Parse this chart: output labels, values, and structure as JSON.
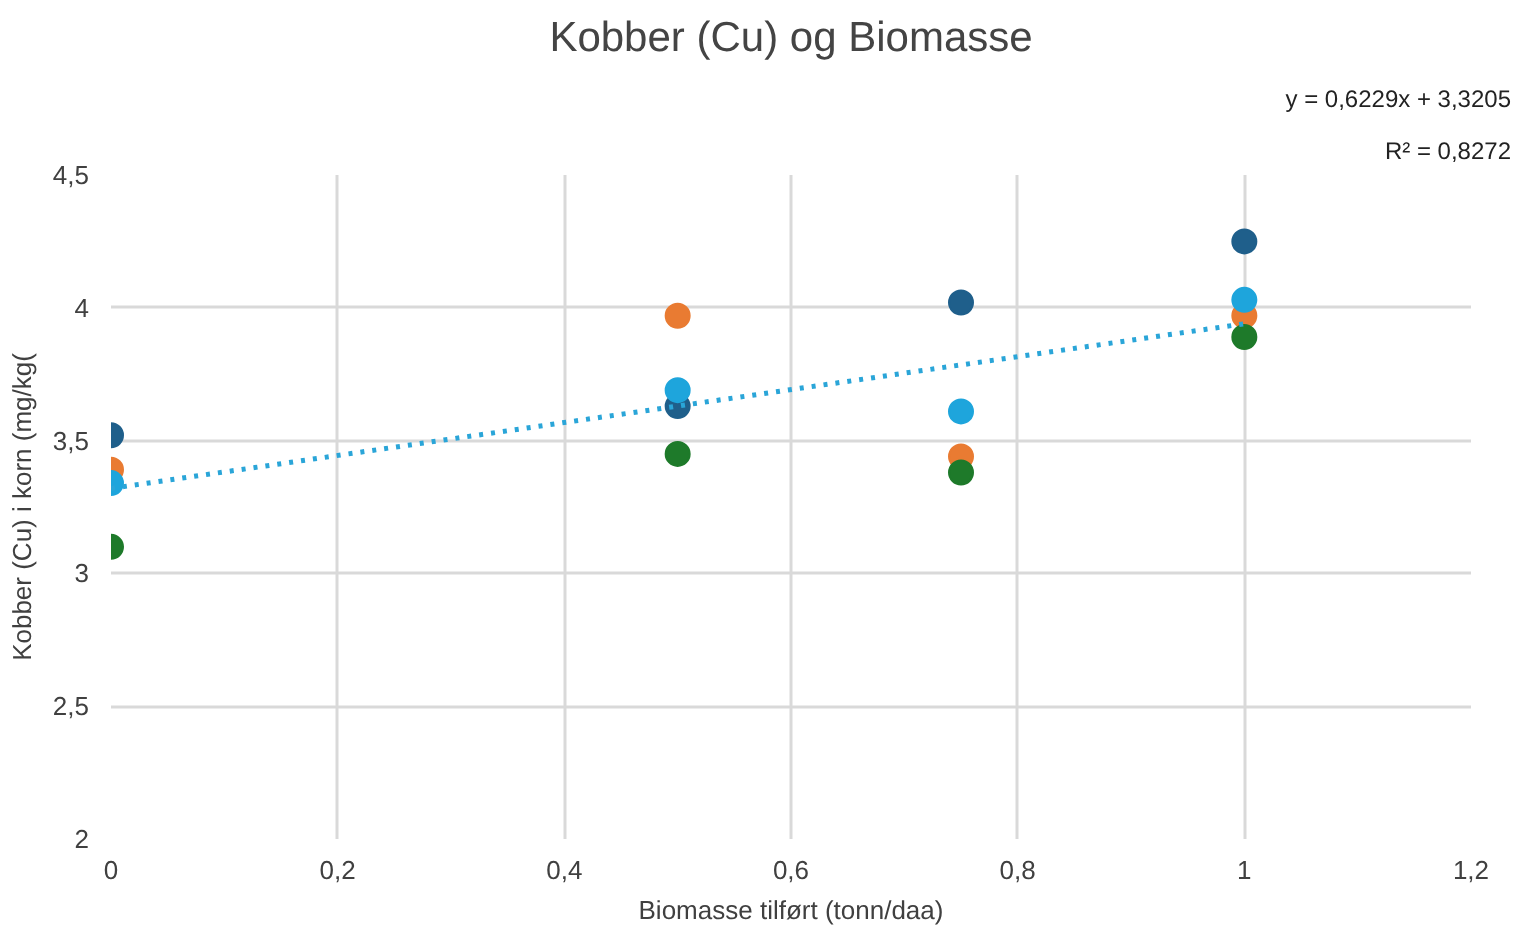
{
  "chart_data": {
    "type": "scatter",
    "title": "Kobber (Cu) og Biomasse",
    "xlabel": "Biomasse tilført (tonn/daa)",
    "ylabel": "Kobber (Cu) i korn (mg/kg(",
    "x": [
      0,
      0.5,
      0.75,
      1
    ],
    "series": [
      {
        "color": "#1f5f8b",
        "values": [
          3.52,
          3.63,
          4.02,
          4.25
        ]
      },
      {
        "color": "#e97b32",
        "values": [
          3.39,
          3.97,
          3.44,
          3.97
        ]
      },
      {
        "color": "#1ea5dc",
        "values": [
          3.34,
          3.69,
          3.61,
          4.03
        ]
      },
      {
        "color": "#1e7a2a",
        "values": [
          3.1,
          3.45,
          3.38,
          3.89
        ]
      },
      {
        "type": "line",
        "color": "#2aa5d8",
        "x": [
          0,
          1
        ],
        "values": [
          3.32,
          3.94
        ],
        "line_style": "dotted",
        "marker": "none"
      }
    ],
    "xlim": [
      0,
      1.2
    ],
    "xticks": [
      0,
      {
        "value": 0.2,
        "label": "0,2"
      },
      {
        "value": 0.4,
        "label": "0,4"
      },
      {
        "value": 0.6,
        "label": "0,6"
      },
      {
        "value": 0.8,
        "label": "0,8"
      },
      1,
      {
        "value": 1.2,
        "label": "1,2"
      }
    ],
    "ylim": [
      2,
      4.5
    ],
    "yticks": [
      2,
      {
        "value": 2.5,
        "label": "2,5"
      },
      3,
      {
        "value": 3.5,
        "label": "3,5"
      },
      4,
      {
        "value": 4.5,
        "label": "4,5"
      }
    ],
    "grid": true,
    "marker": "circle",
    "annotations": [
      "y = 0,6229x + 3,3205",
      "R² = 0,8272"
    ]
  }
}
